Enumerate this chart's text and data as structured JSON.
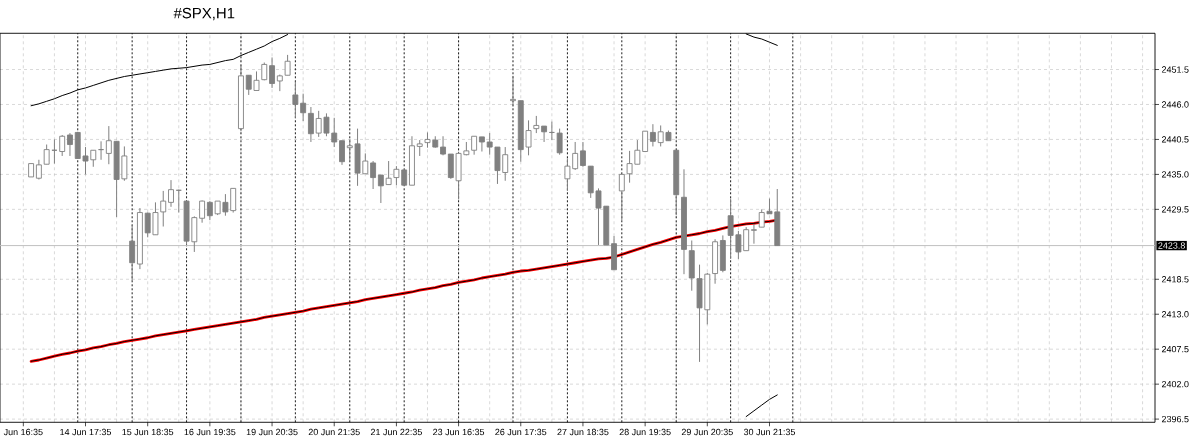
{
  "chart_data": {
    "type": "candlestick",
    "title": "#SPX,H1",
    "categories": [
      "Jun 16:35",
      null,
      null,
      null,
      null,
      null,
      null,
      null,
      "14 Jun 17:35",
      null,
      null,
      null,
      null,
      null,
      null,
      null,
      "15 Jun 18:35",
      null,
      null,
      null,
      null,
      null,
      null,
      null,
      "16 Jun 19:35",
      null,
      null,
      null,
      null,
      null,
      null,
      null,
      "19 Jun 20:35",
      null,
      null,
      null,
      null,
      null,
      null,
      null,
      "20 Jun 21:35",
      null,
      null,
      null,
      null,
      null,
      null,
      null,
      "21 Jun 22:35",
      null,
      null,
      null,
      null,
      null,
      null,
      null,
      "23 Jun 16:35",
      null,
      null,
      null,
      null,
      null,
      null,
      null,
      "26 Jun 17:35",
      null,
      null,
      null,
      null,
      null,
      null,
      null,
      "27 Jun 18:35",
      null,
      null,
      null,
      null,
      null,
      null,
      null,
      "28 Jun 19:35",
      null,
      null,
      null,
      null,
      null,
      null,
      null,
      "29 Jun 20:35",
      null,
      null,
      null,
      null,
      null,
      null,
      null,
      "30 Jun 21:35",
      null
    ],
    "color": "#808080",
    "ohlc": [
      null,
      [
        2434.6,
        2436.7,
        2434.6,
        2436.7
      ],
      [
        2434.4,
        2437.3,
        2434.2,
        2436.5
      ],
      [
        2436.6,
        2439.7,
        2436.6,
        2438.9
      ],
      [
        2438.8,
        2440.5,
        2436.7,
        2438.8
      ],
      [
        2438.6,
        2441.2,
        2437.9,
        2441.0
      ],
      [
        2441.2,
        2441.5,
        2437.9,
        2439.7
      ],
      [
        2441.6,
        2441.7,
        2437.5,
        2437.5
      ],
      [
        2437.9,
        2439.3,
        2435.0,
        2437.1
      ],
      [
        2437.3,
        2438.8,
        2436.2,
        2438.8
      ],
      [
        2438.9,
        2440.2,
        2437.3,
        2438.9
      ],
      [
        2438.3,
        2442.6,
        2436.6,
        2440.3
      ],
      [
        2440.2,
        2440.2,
        2428.3,
        2434.2
      ],
      [
        2434.3,
        2439.4,
        2434.0,
        2437.9
      ],
      [
        2424.5,
        2427.0,
        2418.3,
        2421.1
      ],
      [
        2420.9,
        2429.7,
        2420.1,
        2429.0
      ],
      [
        2428.9,
        2429.0,
        2425.1,
        2425.8
      ],
      [
        2425.5,
        2430.6,
        2425.5,
        2429.0
      ],
      [
        2429.1,
        2432.4,
        2426.8,
        2430.8
      ],
      [
        2430.6,
        2434.1,
        2429.9,
        2432.6
      ],
      [
        2432.5,
        2432.6,
        2429.0,
        2432.5
      ],
      [
        2430.8,
        2430.8,
        2424.0,
        2424.5
      ],
      [
        2424.4,
        2428.4,
        2422.8,
        2428.2
      ],
      [
        2428.1,
        2430.9,
        2427.4,
        2430.8
      ],
      [
        2430.6,
        2430.8,
        2427.8,
        2428.5
      ],
      [
        2428.8,
        2430.8,
        2428.6,
        2430.8
      ],
      [
        2430.6,
        2431.9,
        2428.5,
        2429.1
      ],
      [
        2429.3,
        2432.8,
        2429.0,
        2432.8
      ],
      [
        2442.2,
        2452.2,
        2441.8,
        2450.5
      ],
      [
        2450.6,
        2450.6,
        2447.5,
        2448.4
      ],
      [
        2448.2,
        2451.2,
        2448.2,
        2449.8
      ],
      [
        2449.9,
        2452.6,
        2449.8,
        2452.3
      ],
      [
        2452.1,
        2453.4,
        2448.6,
        2449.3
      ],
      [
        2449.7,
        2450.7,
        2448.1,
        2450.5
      ],
      [
        2450.6,
        2453.8,
        2450.6,
        2452.8
      ],
      [
        2447.5,
        2449.6,
        2443.9,
        2446.0
      ],
      [
        2446.2,
        2447.7,
        2443.4,
        2444.7
      ],
      [
        2444.6,
        2445.6,
        2440.1,
        2441.4
      ],
      [
        2441.5,
        2445.0,
        2440.9,
        2443.8
      ],
      [
        2444.0,
        2444.6,
        2441.0,
        2441.5
      ],
      [
        2441.5,
        2443.9,
        2439.3,
        2440.1
      ],
      [
        2440.3,
        2440.3,
        2436.5,
        2437.0
      ],
      [
        2439.2,
        2440.5,
        2437.0,
        2439.5
      ],
      [
        2439.8,
        2442.2,
        2433.2,
        2435.2
      ],
      [
        2435.1,
        2438.3,
        2435.1,
        2437.1
      ],
      [
        2436.8,
        2437.1,
        2432.7,
        2434.5
      ],
      [
        2434.9,
        2434.9,
        2430.5,
        2433.2
      ],
      [
        2433.4,
        2437.1,
        2433.4,
        2434.4
      ],
      [
        2434.5,
        2436.3,
        2433.3,
        2435.8
      ],
      [
        2435.7,
        2435.7,
        2433.3,
        2433.3
      ],
      [
        2433.3,
        2441.0,
        2433.3,
        2439.5
      ],
      [
        2439.4,
        2440.4,
        2437.9,
        2439.8
      ],
      [
        2440.0,
        2441.6,
        2439.2,
        2440.5
      ],
      [
        2440.4,
        2441.0,
        2439.2,
        2439.3
      ],
      [
        2439.3,
        2441.0,
        2438.0,
        2438.2
      ],
      [
        2438.2,
        2438.2,
        2434.3,
        2434.5
      ],
      [
        2434.0,
        2438.4,
        2431.1,
        2438.3
      ],
      [
        2438.1,
        2440.1,
        2438.0,
        2438.7
      ],
      [
        2438.8,
        2441.0,
        2438.1,
        2441.0
      ],
      [
        2440.9,
        2440.9,
        2438.6,
        2440.1
      ],
      [
        2440.1,
        2441.5,
        2438.1,
        2439.3
      ],
      [
        2439.3,
        2439.3,
        2433.5,
        2435.6
      ],
      [
        2435.3,
        2439.3,
        2434.0,
        2438.1
      ],
      [
        2446.6,
        2450.5,
        2445.7,
        2446.8
      ],
      [
        2446.6,
        2446.6,
        2437.0,
        2438.9
      ],
      [
        2439.3,
        2443.5,
        2438.0,
        2441.9
      ],
      [
        2442.2,
        2444.2,
        2441.5,
        2442.7
      ],
      [
        2442.6,
        2442.6,
        2440.1,
        2441.7
      ],
      [
        2441.6,
        2443.3,
        2440.4,
        2441.6
      ],
      [
        2441.5,
        2442.2,
        2438.1,
        2438.4
      ],
      [
        2434.3,
        2437.5,
        2432.4,
        2436.3
      ],
      [
        2435.9,
        2440.1,
        2435.7,
        2438.3
      ],
      [
        2438.7,
        2440.1,
        2436.2,
        2436.4
      ],
      [
        2436.3,
        2436.3,
        2431.3,
        2432.1
      ],
      [
        2432.4,
        2432.8,
        2423.9,
        2429.7
      ],
      [
        2430.0,
        2430.0,
        2423.9,
        2423.9
      ],
      [
        2424.1,
        2425.3,
        2420.0,
        2420.0
      ],
      [
        2432.4,
        2435.0,
        2427.8,
        2435.0
      ],
      [
        2435.1,
        2438.7,
        2433.7,
        2436.7
      ],
      [
        2436.6,
        2440.4,
        2436.6,
        2438.8
      ],
      [
        2438.6,
        2441.8,
        2438.6,
        2441.8
      ],
      [
        2441.6,
        2442.9,
        2439.4,
        2440.2
      ],
      [
        2440.0,
        2442.7,
        2439.4,
        2441.7
      ],
      [
        2441.6,
        2441.9,
        2440.3,
        2440.3
      ],
      [
        2438.8,
        2438.8,
        2428.6,
        2431.8
      ],
      [
        2431.4,
        2435.8,
        2419.3,
        2423.2
      ],
      [
        2423.0,
        2424.6,
        2416.7,
        2418.7
      ],
      [
        2418.6,
        2420.8,
        2405.5,
        2414.0
      ],
      [
        2413.7,
        2419.5,
        2411.4,
        2419.3
      ],
      [
        2419.4,
        2424.8,
        2417.8,
        2424.4
      ],
      [
        2424.6,
        2425.4,
        2419.6,
        2419.9
      ],
      [
        2428.5,
        2431.2,
        2421.7,
        2425.4
      ],
      [
        2425.5,
        2426.1,
        2421.7,
        2422.8
      ],
      [
        2423.0,
        2426.7,
        2423.0,
        2426.3
      ],
      [
        2426.2,
        2427.2,
        2424.1,
        2426.3
      ],
      [
        2426.7,
        2429.5,
        2426.7,
        2429.0
      ],
      [
        2429.2,
        2431.2,
        2428.8,
        2428.8
      ],
      [
        2429.1,
        2432.7,
        2423.8,
        2423.8
      ]
    ],
    "series": [
      {
        "type": "line",
        "color": "#ff0000",
        "values": [
          null,
          2405.6,
          2405.8,
          2406.1,
          2406.4,
          2406.7,
          2406.9,
          2407.2,
          2407.4,
          2407.7,
          2407.9,
          2408.2,
          2408.4,
          2408.7,
          2408.9,
          2409.1,
          2409.3,
          2409.6,
          2409.8,
          2410.0,
          2410.2,
          2410.4,
          2410.6,
          2410.8,
          2411.0,
          2411.2,
          2411.4,
          2411.6,
          2411.8,
          2412.0,
          2412.2,
          2412.5,
          2412.7,
          2412.9,
          2413.1,
          2413.3,
          2413.5,
          2413.8,
          2414.0,
          2414.2,
          2414.4,
          2414.6,
          2414.8,
          2415.0,
          2415.3,
          2415.5,
          2415.7,
          2415.9,
          2416.1,
          2416.3,
          2416.5,
          2416.8,
          2417.0,
          2417.2,
          2417.5,
          2417.7,
          2418.0,
          2418.2,
          2418.4,
          2418.7,
          2418.9,
          2419.1,
          2419.3,
          2419.6,
          2419.8,
          2419.9,
          2420.1,
          2420.3,
          2420.5,
          2420.7,
          2420.9,
          2421.1,
          2421.3,
          2421.5,
          2421.7,
          2421.8,
          2422.0,
          2422.4,
          2422.8,
          2423.2,
          2423.6,
          2424.0,
          2424.3,
          2424.7,
          2425.1,
          2425.3,
          2425.5,
          2425.7,
          2426.0,
          2426.2,
          2426.5,
          2426.8,
          2427.0,
          2427.2,
          2427.3,
          2427.5,
          2427.6,
          2427.8
        ]
      },
      {
        "type": "line",
        "color": "#000000",
        "values": [
          null,
          2405.6,
          2405.8,
          2406.1,
          2406.4,
          2406.7,
          2406.9,
          2407.2,
          2407.4,
          2407.7,
          2407.9,
          2408.2,
          2408.4,
          2408.7,
          2408.9,
          2409.1,
          2409.3,
          2409.6,
          2409.8,
          2410.0,
          2410.2,
          2410.4,
          2410.6,
          2410.8,
          2411.0,
          2411.2,
          2411.4,
          2411.6,
          2411.8,
          2412.0,
          2412.2,
          2412.5,
          2412.7,
          2412.9,
          2413.1,
          2413.3,
          2413.5,
          2413.8,
          2414.0,
          2414.2,
          2414.4,
          2414.6,
          2414.8,
          2415.0,
          2415.3,
          2415.5,
          2415.7,
          2415.9,
          2416.1,
          2416.3,
          2416.5,
          2416.8,
          2417.0,
          2417.2,
          2417.5,
          2417.7,
          2418.0,
          2418.2,
          2418.4,
          2418.7,
          2418.9,
          2419.1,
          2419.3,
          2419.6,
          2419.8,
          2419.9,
          2420.1,
          2420.3,
          2420.5,
          2420.7,
          2420.9,
          2421.1,
          2421.3,
          2421.5,
          2421.7,
          2421.8,
          2422.0,
          2422.4,
          2422.8,
          2423.2,
          2423.6,
          2424.0,
          2424.3,
          2424.7,
          2425.1,
          2425.3,
          2425.5,
          2425.7,
          2426.0,
          2426.2,
          2426.5,
          2426.8,
          2427.0,
          2427.2,
          2427.3,
          2427.5,
          2427.6,
          2427.8
        ]
      },
      {
        "type": "line",
        "color": "#000000",
        "values": [
          null,
          2445.8,
          2446.1,
          2446.5,
          2446.9,
          2447.4,
          2447.8,
          2448.3,
          2448.6,
          2449.0,
          2449.4,
          2449.8,
          2450.1,
          2450.4,
          2450.6,
          2450.8,
          2451.0,
          2451.2,
          2451.4,
          2451.6,
          2451.7,
          2451.8,
          2452.0,
          2452.2,
          2452.3,
          2452.6,
          2452.9,
          2453.1,
          2453.7,
          2454.2,
          2454.7,
          2455.2,
          2455.9,
          2456.4,
          2457.0,
          null,
          null,
          null,
          null,
          null,
          null,
          null,
          null,
          null,
          null,
          null,
          null,
          null,
          null,
          null,
          null,
          null,
          null,
          null,
          null,
          null,
          null,
          null,
          null,
          null,
          null,
          null,
          null,
          null,
          null,
          null,
          null,
          null,
          null,
          null,
          null,
          null,
          null,
          null,
          null,
          null,
          null,
          null,
          null,
          null,
          null,
          null,
          null,
          null,
          null,
          null,
          null,
          null,
          null,
          null,
          null,
          null,
          null,
          2457.1,
          2456.6,
          2456.3,
          2455.8,
          2455.3
        ]
      },
      {
        "type": "line",
        "color": "#000000",
        "values": [
          null,
          null,
          null,
          null,
          null,
          null,
          null,
          null,
          null,
          null,
          null,
          null,
          null,
          null,
          null,
          null,
          null,
          null,
          null,
          null,
          null,
          null,
          null,
          null,
          null,
          null,
          null,
          null,
          null,
          null,
          null,
          null,
          null,
          null,
          null,
          null,
          null,
          null,
          null,
          null,
          null,
          null,
          null,
          null,
          null,
          null,
          null,
          null,
          null,
          null,
          null,
          null,
          null,
          null,
          null,
          null,
          null,
          null,
          null,
          null,
          null,
          null,
          null,
          null,
          null,
          null,
          null,
          null,
          null,
          null,
          null,
          null,
          null,
          null,
          null,
          null,
          null,
          null,
          null,
          null,
          null,
          null,
          null,
          null,
          null,
          null,
          null,
          null,
          null,
          null,
          null,
          null,
          null,
          2396.9,
          2397.8,
          2398.7,
          2399.6,
          2400.3
        ]
      }
    ],
    "ylim": [
      2396.0,
      2457.2
    ],
    "yticks": [
      2396.5,
      {
        "value": 2402.0,
        "label": "2402.0"
      },
      2407.5,
      {
        "value": 2413.0,
        "label": "2413.0"
      },
      2418.5,
      2429.5,
      {
        "value": 2435.0,
        "label": "2435.0"
      },
      2440.5,
      {
        "value": 2446.0,
        "label": "2446.0"
      },
      2451.5
    ],
    "grid": true,
    "ref_lines": [
      {
        "axis": "y",
        "value": 2423.8,
        "label": "2423.8",
        "color": "#c0c0c0"
      }
    ]
  }
}
